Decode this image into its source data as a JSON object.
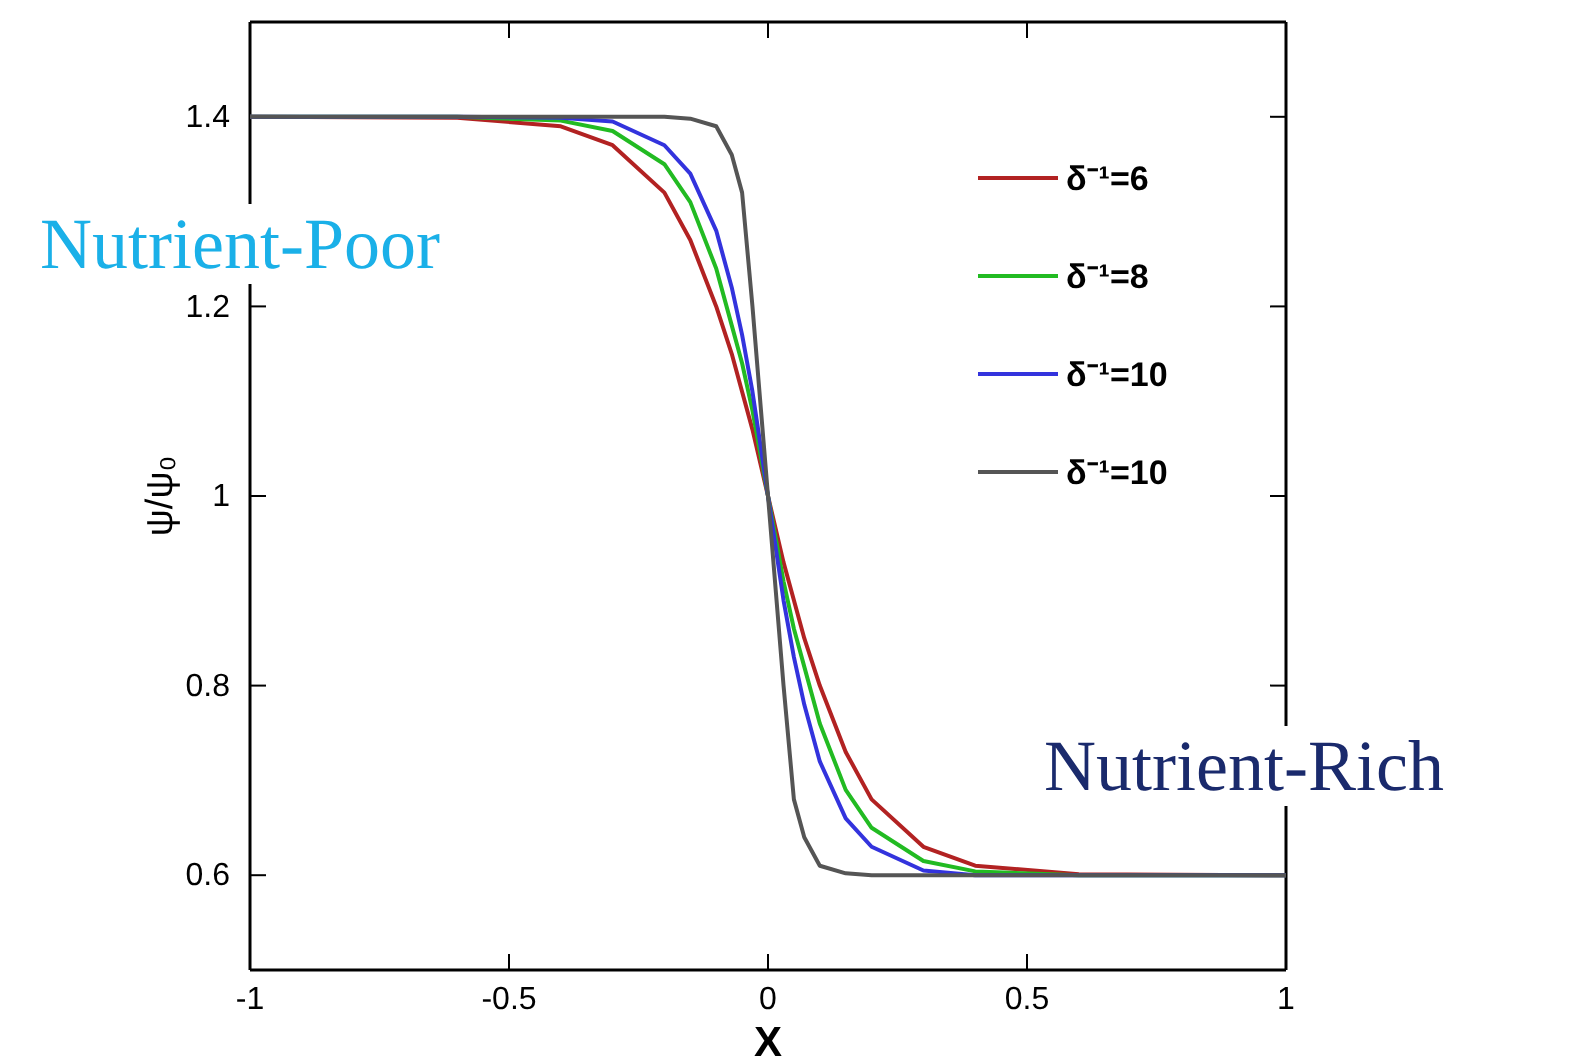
{
  "chart_data": {
    "type": "line",
    "xlabel": "X",
    "ylabel": "ψ/ψ₀",
    "xlim": [
      -1,
      1
    ],
    "xticks": [
      -1,
      -0.5,
      0,
      0.5,
      1
    ],
    "ylim": [
      0.5,
      1.5
    ],
    "yticks": [
      0.6,
      0.8,
      1,
      1.2,
      1.4
    ],
    "x": [
      -1,
      -0.6,
      -0.4,
      -0.3,
      -0.2,
      -0.15,
      -0.1,
      -0.07,
      -0.05,
      -0.03,
      0,
      0.03,
      0.05,
      0.07,
      0.1,
      0.15,
      0.2,
      0.3,
      0.4,
      0.6,
      1
    ],
    "series": [
      {
        "name": "δ⁻¹=6",
        "color": "#b22222",
        "values": [
          1.4,
          1.399,
          1.39,
          1.37,
          1.32,
          1.27,
          1.2,
          1.15,
          1.11,
          1.07,
          1.0,
          0.93,
          0.89,
          0.85,
          0.8,
          0.73,
          0.68,
          0.63,
          0.61,
          0.601,
          0.6
        ]
      },
      {
        "name": "δ⁻¹=8",
        "color": "#22bb22",
        "values": [
          1.4,
          1.4,
          1.396,
          1.385,
          1.35,
          1.31,
          1.24,
          1.18,
          1.14,
          1.09,
          1.0,
          0.91,
          0.86,
          0.82,
          0.76,
          0.69,
          0.65,
          0.615,
          0.604,
          0.6,
          0.6
        ]
      },
      {
        "name": "δ⁻¹=10",
        "color": "#3333dd",
        "values": [
          1.4,
          1.4,
          1.399,
          1.395,
          1.37,
          1.34,
          1.28,
          1.22,
          1.17,
          1.11,
          1.0,
          0.89,
          0.83,
          0.78,
          0.72,
          0.66,
          0.63,
          0.605,
          0.6,
          0.6,
          0.6
        ]
      },
      {
        "name": "δ⁻¹=10",
        "color": "#555555",
        "values": [
          1.4,
          1.4,
          1.4,
          1.4,
          1.4,
          1.398,
          1.39,
          1.36,
          1.32,
          1.2,
          1.0,
          0.8,
          0.68,
          0.64,
          0.61,
          0.602,
          0.6,
          0.6,
          0.6,
          0.6,
          0.6
        ]
      }
    ],
    "legend": "top right",
    "grid": false,
    "annotations": [
      "Nutrient-Poor",
      "Nutrient-Rich"
    ]
  }
}
